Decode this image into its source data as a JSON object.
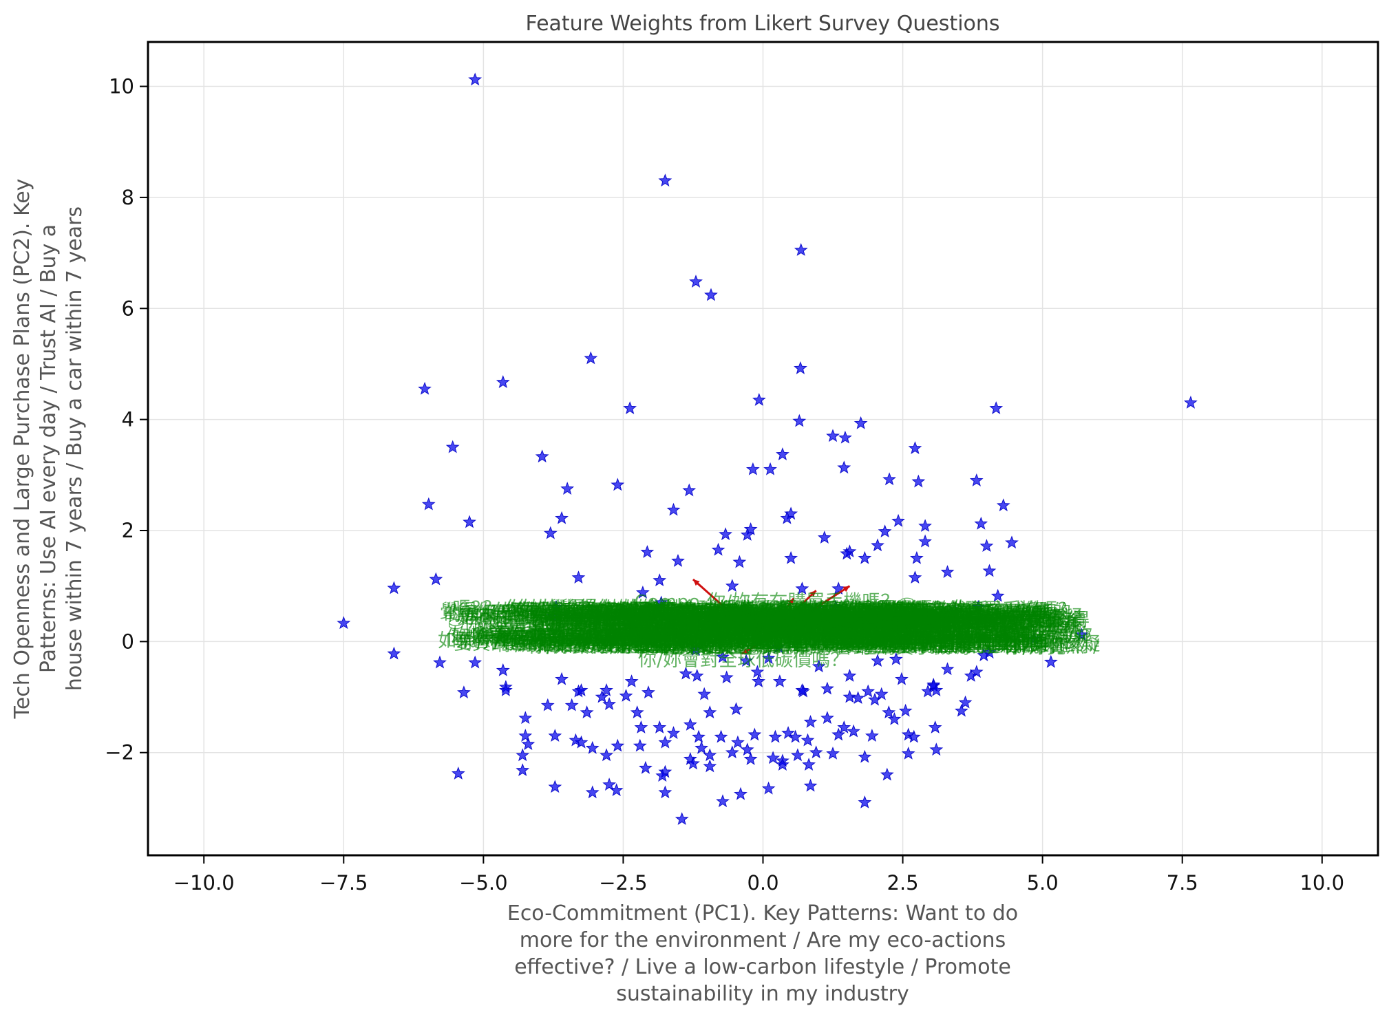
{
  "chart_data": {
    "type": "scatter",
    "title": "Feature Weights from Likert Survey Questions",
    "xlabel_lines": [
      "Eco-Commitment (PC1). Key Patterns: Want to do",
      "more for the environment / Are my eco-actions",
      "effective? / Live a low-carbon lifestyle / Promote",
      "sustainability in my industry"
    ],
    "ylabel_lines": [
      "Tech Openness and Large Purchase Plans (PC2). Key",
      "Patterns: Use AI every day / Trust AI / Buy a",
      "house within 7 years / Buy a car within 7 years"
    ],
    "xlim": [
      -11.0,
      11.0
    ],
    "ylim": [
      -3.85,
      10.8
    ],
    "xticks": [
      -10.0,
      -7.5,
      -5.0,
      -2.5,
      0.0,
      2.5,
      5.0,
      7.5,
      10.0
    ],
    "xtick_labels": [
      "−10.0",
      "−7.5",
      "−5.0",
      "−2.5",
      "0.0",
      "2.5",
      "5.0",
      "7.5",
      "10.0"
    ],
    "yticks": [
      -2,
      0,
      2,
      4,
      6,
      8,
      10
    ],
    "ytick_labels": [
      "−2",
      "0",
      "2",
      "4",
      "6",
      "8",
      "10"
    ],
    "grid": true,
    "marker": "star",
    "colors": {
      "points": "#0000eb",
      "arrows": "#d01010",
      "feature_labels": "#008200",
      "frame": "#000000"
    },
    "points": [
      [
        -5.15,
        10.12
      ],
      [
        -1.75,
        8.3
      ],
      [
        0.68,
        7.05
      ],
      [
        -1.2,
        6.48
      ],
      [
        -0.93,
        6.24
      ],
      [
        -3.08,
        5.1
      ],
      [
        0.67,
        4.92
      ],
      [
        -4.65,
        4.67
      ],
      [
        -6.05,
        4.55
      ],
      [
        -0.07,
        4.35
      ],
      [
        -2.38,
        4.2
      ],
      [
        7.65,
        4.3
      ],
      [
        4.17,
        4.2
      ],
      [
        0.65,
        3.97
      ],
      [
        1.75,
        3.93
      ],
      [
        1.25,
        3.7
      ],
      [
        1.47,
        3.67
      ],
      [
        -5.55,
        3.5
      ],
      [
        2.72,
        3.48
      ],
      [
        0.35,
        3.37
      ],
      [
        -3.95,
        3.33
      ],
      [
        1.45,
        3.13
      ],
      [
        -0.18,
        3.1
      ],
      [
        0.13,
        3.1
      ],
      [
        2.26,
        2.92
      ],
      [
        3.82,
        2.9
      ],
      [
        2.78,
        2.88
      ],
      [
        -2.6,
        2.82
      ],
      [
        -3.5,
        2.75
      ],
      [
        -1.32,
        2.72
      ],
      [
        -5.98,
        2.47
      ],
      [
        4.3,
        2.45
      ],
      [
        -1.6,
        2.37
      ],
      [
        0.5,
        2.3
      ],
      [
        0.43,
        2.22
      ],
      [
        -3.6,
        2.22
      ],
      [
        -5.25,
        2.15
      ],
      [
        2.42,
        2.17
      ],
      [
        3.9,
        2.12
      ],
      [
        2.9,
        2.08
      ],
      [
        -0.22,
        2.02
      ],
      [
        2.18,
        1.98
      ],
      [
        -0.28,
        1.92
      ],
      [
        -0.67,
        1.93
      ],
      [
        -3.8,
        1.95
      ],
      [
        1.1,
        1.87
      ],
      [
        4.45,
        1.78
      ],
      [
        2.9,
        1.8
      ],
      [
        4.0,
        1.72
      ],
      [
        2.05,
        1.73
      ],
      [
        -0.8,
        1.65
      ],
      [
        -2.07,
        1.61
      ],
      [
        1.55,
        1.62
      ],
      [
        1.5,
        1.58
      ],
      [
        0.5,
        1.5
      ],
      [
        1.82,
        1.5
      ],
      [
        2.75,
        1.5
      ],
      [
        -1.52,
        1.45
      ],
      [
        -0.42,
        1.43
      ],
      [
        -3.3,
        1.15
      ],
      [
        -5.85,
        1.12
      ],
      [
        -0.55,
        1.0
      ],
      [
        3.3,
        1.25
      ],
      [
        4.05,
        1.27
      ],
      [
        -1.85,
        1.1
      ],
      [
        -6.6,
        0.96
      ],
      [
        2.72,
        1.15
      ],
      [
        1.35,
        0.95
      ],
      [
        4.2,
        0.82
      ],
      [
        -1.82,
        0.7
      ],
      [
        -3.7,
        0.62
      ],
      [
        3.85,
        0.62
      ],
      [
        -2.5,
        0.55
      ],
      [
        3.45,
        0.52
      ],
      [
        -7.5,
        0.33
      ],
      [
        -6.6,
        -0.22
      ],
      [
        -5.78,
        -0.38
      ],
      [
        -5.15,
        -0.38
      ],
      [
        4.85,
        0.05
      ],
      [
        5.7,
        0.12
      ],
      [
        5.15,
        -0.37
      ],
      [
        3.82,
        -0.55
      ],
      [
        4.05,
        -0.2
      ],
      [
        3.95,
        -0.25
      ],
      [
        3.3,
        -0.5
      ],
      [
        3.72,
        -0.62
      ],
      [
        3.05,
        -0.78
      ],
      [
        2.95,
        -0.9
      ],
      [
        3.05,
        -0.8
      ],
      [
        2.12,
        -0.95
      ],
      [
        1.88,
        -0.9
      ],
      [
        1.15,
        -0.85
      ],
      [
        0.72,
        -0.9
      ],
      [
        0.3,
        -0.72
      ],
      [
        -0.08,
        -0.72
      ],
      [
        -0.65,
        -0.65
      ],
      [
        -1.18,
        -0.62
      ],
      [
        -1.38,
        -0.58
      ],
      [
        -2.35,
        -0.72
      ],
      [
        -3.6,
        -0.68
      ],
      [
        -4.6,
        -0.82
      ],
      [
        -4.6,
        -0.88
      ],
      [
        -4.65,
        -0.52
      ],
      [
        -5.35,
        -0.92
      ],
      [
        -3.3,
        -0.9
      ],
      [
        -3.25,
        -0.88
      ],
      [
        -2.8,
        -0.88
      ],
      [
        -2.05,
        -0.92
      ],
      [
        -2.45,
        -0.98
      ],
      [
        -2.88,
        -1.0
      ],
      [
        -3.42,
        -1.15
      ],
      [
        -3.85,
        -1.15
      ],
      [
        -2.75,
        -1.13
      ],
      [
        -2.25,
        -1.28
      ],
      [
        -0.48,
        -1.22
      ],
      [
        -0.95,
        -1.28
      ],
      [
        -3.15,
        -1.28
      ],
      [
        -4.25,
        -1.38
      ],
      [
        -3.72,
        -1.7
      ],
      [
        -4.25,
        -1.7
      ],
      [
        -3.25,
        -1.82
      ],
      [
        -3.05,
        -1.92
      ],
      [
        -2.8,
        -2.05
      ],
      [
        -2.6,
        -1.88
      ],
      [
        -2.18,
        -1.55
      ],
      [
        -2.2,
        -1.88
      ],
      [
        -1.85,
        -1.55
      ],
      [
        -1.3,
        -1.5
      ],
      [
        -1.6,
        -1.65
      ],
      [
        -1.75,
        -1.82
      ],
      [
        -1.15,
        -1.72
      ],
      [
        -0.75,
        -1.72
      ],
      [
        -0.45,
        -1.82
      ],
      [
        -0.15,
        -1.68
      ],
      [
        0.22,
        -1.72
      ],
      [
        0.45,
        -1.65
      ],
      [
        0.58,
        -1.72
      ],
      [
        0.8,
        -1.78
      ],
      [
        0.85,
        -1.45
      ],
      [
        1.15,
        -1.38
      ],
      [
        1.45,
        -1.55
      ],
      [
        1.62,
        -1.62
      ],
      [
        1.95,
        -1.7
      ],
      [
        2.25,
        -1.28
      ],
      [
        2.35,
        -1.4
      ],
      [
        2.6,
        -1.68
      ],
      [
        2.7,
        -1.72
      ],
      [
        3.08,
        -1.55
      ],
      [
        3.1,
        -1.95
      ],
      [
        2.6,
        -2.02
      ],
      [
        2.22,
        -2.4
      ],
      [
        1.82,
        -2.9
      ],
      [
        1.82,
        -2.08
      ],
      [
        1.25,
        -2.02
      ],
      [
        0.95,
        -2.0
      ],
      [
        0.62,
        -2.05
      ],
      [
        0.35,
        -2.15
      ],
      [
        0.18,
        -2.1
      ],
      [
        -0.22,
        -2.12
      ],
      [
        -0.55,
        -2.0
      ],
      [
        -0.95,
        -2.05
      ],
      [
        -1.3,
        -2.12
      ],
      [
        -1.75,
        -2.35
      ],
      [
        -2.1,
        -2.28
      ],
      [
        -2.75,
        -2.58
      ],
      [
        -2.62,
        -2.68
      ],
      [
        -3.05,
        -2.72
      ],
      [
        -3.72,
        -2.62
      ],
      [
        -4.3,
        -2.32
      ],
      [
        -4.3,
        -2.05
      ],
      [
        -5.45,
        -2.38
      ],
      [
        -1.75,
        -2.72
      ],
      [
        -1.45,
        -3.2
      ],
      [
        -0.72,
        -2.88
      ],
      [
        -0.4,
        -2.75
      ],
      [
        0.1,
        -2.65
      ],
      [
        0.85,
        -2.6
      ],
      [
        0.35,
        -2.22
      ],
      [
        0.82,
        -2.22
      ],
      [
        -0.95,
        -2.25
      ],
      [
        -1.8,
        -2.42
      ],
      [
        -1.25,
        -2.2
      ],
      [
        2.0,
        -1.05
      ],
      [
        1.55,
        -1.0
      ],
      [
        1.7,
        -1.02
      ],
      [
        0.7,
        -0.88
      ],
      [
        -0.1,
        -0.55
      ],
      [
        1.55,
        -0.62
      ],
      [
        1.0,
        -0.45
      ],
      [
        2.48,
        -0.68
      ],
      [
        2.38,
        -0.32
      ],
      [
        2.05,
        -0.35
      ],
      [
        0.1,
        -0.3
      ],
      [
        -0.3,
        -0.35
      ],
      [
        -0.72,
        -0.28
      ],
      [
        -1.2,
        -0.15
      ],
      [
        -1.55,
        0.15
      ],
      [
        -2.3,
        0.28
      ],
      [
        0.55,
        0.42
      ],
      [
        0.95,
        0.58
      ],
      [
        1.3,
        0.62
      ],
      [
        -0.35,
        0.55
      ],
      [
        -0.98,
        0.5
      ],
      [
        0.28,
        -0.1
      ],
      [
        1.9,
        0.35
      ],
      [
        2.4,
        0.25
      ],
      [
        3.0,
        0.3
      ],
      [
        1.35,
        -1.68
      ],
      [
        -0.28,
        -1.95
      ],
      [
        -3.35,
        -1.78
      ],
      [
        2.55,
        -1.25
      ],
      [
        -1.1,
        -1.92
      ],
      [
        3.55,
        -1.25
      ],
      [
        3.62,
        -1.1
      ],
      [
        -3.75,
        0.45
      ],
      [
        -1.05,
        -0.95
      ],
      [
        -2.15,
        0.88
      ],
      [
        0.7,
        0.95
      ],
      [
        3.1,
        -0.88
      ],
      [
        -4.2,
        -1.85
      ]
    ],
    "arrows": [
      [
        0.0,
        0.0,
        -1.25,
        1.12
      ],
      [
        0.0,
        0.0,
        1.55,
        1.0
      ],
      [
        0.0,
        0.0,
        0.95,
        0.92
      ],
      [
        0.0,
        0.0,
        0.55,
        0.78
      ],
      [
        0.0,
        0.0,
        0.35,
        0.62
      ],
      [
        0.0,
        0.0,
        -0.38,
        -0.22
      ],
      [
        0.0,
        0.0,
        0.85,
        0.45
      ],
      [
        0.0,
        0.0,
        -0.55,
        0.38
      ]
    ],
    "feature_labels": [
      {
        "text": "Compo",
        "x": -2.3,
        "y": 0.72,
        "anchor": "start"
      },
      {
        "text": "你/妳有在購買手機嗎？⛀",
        "x": -1.0,
        "y": 0.72,
        "anchor": "start"
      },
      {
        "text": "你/妳覺得你/妳的生活方式值得嗎？",
        "x": -0.8,
        "y": 0.32,
        "anchor": "middle"
      },
      {
        "text": "如果你/妳懷疑你/妳要買的產品是不是永續生產、採摘的，你/妳仍然會買它嗎？",
        "x": 0.0,
        "y": 0.02,
        "anchor": "middle"
      },
      {
        "text": "你/妳會對全球低碳價嗎？",
        "x": -0.35,
        "y": -0.33,
        "anchor": "middle"
      }
    ],
    "label_band": {
      "x_min": -3.9,
      "x_max": 4.2,
      "y_min": -0.1,
      "y_max": 0.6,
      "count": 200
    }
  }
}
